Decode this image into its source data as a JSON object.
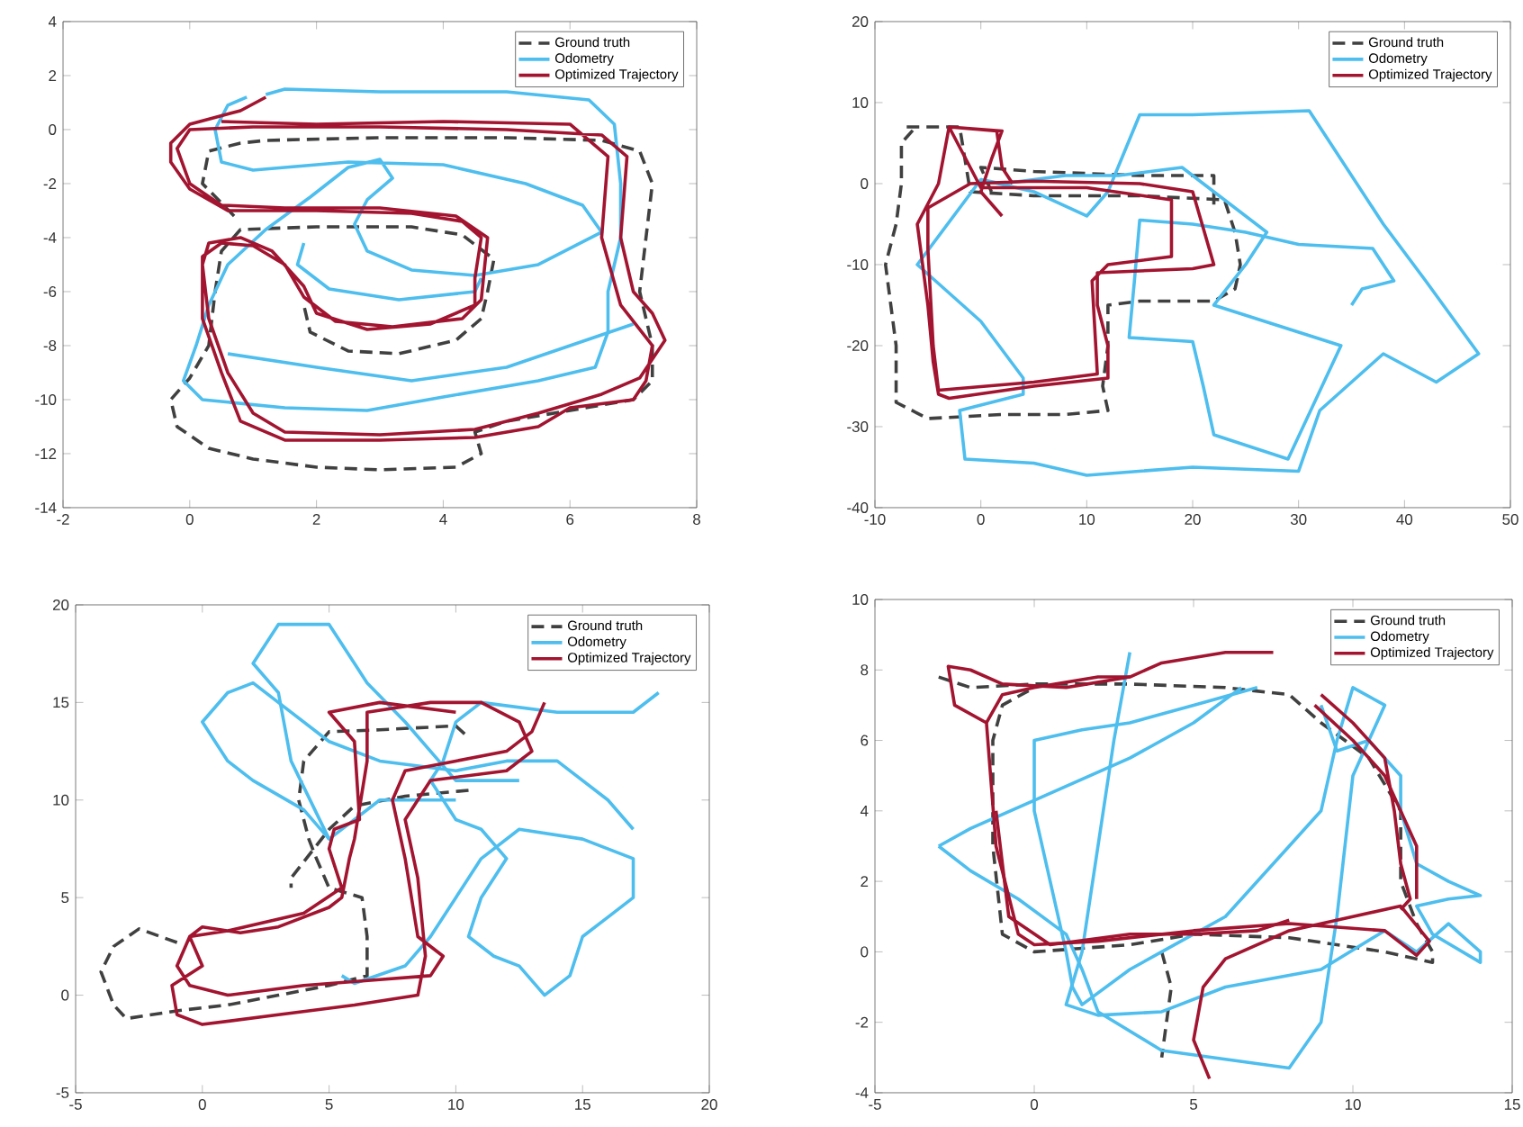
{
  "chart_data": [
    {
      "type": "line",
      "xlim": [
        -2,
        8
      ],
      "ylim": [
        -14,
        4
      ],
      "xticks": [
        -2,
        0,
        2,
        4,
        6,
        8
      ],
      "yticks": [
        -14,
        -12,
        -10,
        -8,
        -6,
        -4,
        -2,
        0,
        2,
        4
      ],
      "legend": "top right",
      "series": [
        {
          "name": "Ground truth",
          "color": "#404040",
          "line_style": "dashed",
          "x": [
            0.7,
            0.2,
            0.3,
            0.8,
            1.2,
            3,
            5,
            6.5,
            7.1,
            7.3,
            7.2,
            7.1,
            7.3,
            7.3,
            7.0,
            6,
            5,
            4.5,
            4.6,
            4.2,
            3,
            2,
            1,
            0.3,
            -0.2,
            -0.3,
            0,
            0.3,
            0.4,
            0.5,
            0.8,
            2,
            3.5,
            4.3,
            4.8,
            4.7,
            4.6,
            4.2,
            3.3,
            2.5,
            1.9,
            1.8
          ],
          "values": [
            -3.2,
            -2,
            -0.8,
            -0.5,
            -0.4,
            -0.3,
            -0.3,
            -0.4,
            -0.8,
            -2,
            -4,
            -6,
            -8,
            -9.3,
            -10,
            -10.4,
            -10.8,
            -11.2,
            -12,
            -12.5,
            -12.6,
            -12.5,
            -12.2,
            -11.8,
            -11,
            -10,
            -9.2,
            -8,
            -6,
            -4.5,
            -3.7,
            -3.6,
            -3.6,
            -3.9,
            -4.8,
            -6,
            -7,
            -7.8,
            -8.3,
            -8.2,
            -7.5,
            -6.5
          ]
        },
        {
          "name": "Odometry",
          "color": "#4dbeee",
          "line_style": "solid",
          "x": [
            1.2,
            1.5,
            3,
            5,
            6.3,
            6.7,
            6.8,
            6.8,
            6.6,
            6.6,
            6.4,
            5.5,
            4,
            2.8,
            1.5,
            0.2,
            -0.1,
            0.1,
            0.3,
            0.6,
            1.2,
            1.9,
            2.5,
            3,
            3.2,
            2.8,
            2.6,
            2.8,
            3.5,
            4.5,
            5.5,
            6.5,
            6.2,
            5.3,
            4,
            2.5,
            1,
            0.5,
            0.4,
            0.6,
            0.9
          ],
          "values": [
            1.3,
            1.5,
            1.4,
            1.4,
            1.1,
            0.2,
            -2,
            -4,
            -6,
            -7.5,
            -8.8,
            -9.3,
            -9.9,
            -10.4,
            -10.3,
            -10,
            -9.3,
            -8,
            -6.5,
            -5,
            -3.7,
            -2.5,
            -1.4,
            -1.1,
            -1.8,
            -2.6,
            -3.5,
            -4.5,
            -5.2,
            -5.4,
            -5,
            -3.8,
            -2.8,
            -2,
            -1.3,
            -1.2,
            -1.5,
            -1.2,
            0,
            0.9,
            1.2
          ]
        },
        {
          "color": "#4dbeee",
          "line_style": "solid",
          "x": [
            1.8,
            1.7,
            2.2,
            3.3,
            4.5,
            4.6
          ],
          "values": [
            -4.2,
            -5,
            -5.9,
            -6.3,
            -6,
            -5.5
          ]
        },
        {
          "color": "#4dbeee",
          "line_style": "solid",
          "x": [
            0.6,
            2,
            3.5,
            5,
            6,
            7
          ],
          "values": [
            -8.3,
            -8.8,
            -9.3,
            -8.8,
            -8,
            -7.2
          ]
        },
        {
          "name": "Optimized Trajectory",
          "color": "#a2142f",
          "line_style": "solid",
          "x": [
            1.2,
            0.8,
            0,
            -0.3,
            -0.3,
            0,
            0.6,
            2,
            3.5,
            4.3,
            4.6,
            4.5,
            4.5,
            3.8,
            2.8,
            2,
            1.8,
            1.3,
            0.8,
            0.3,
            0.2,
            0.3,
            0.6,
            1,
            1.5,
            3,
            4.5,
            5.5,
            6.5,
            7.1,
            7.5,
            7.3,
            7.0,
            6.8,
            6.9,
            6.5,
            5,
            3,
            1,
            0,
            -0.2,
            0,
            0.5,
            1.5,
            3,
            4.2,
            4.7,
            4.6,
            4.3,
            3.2,
            2.3,
            1.8,
            1.5,
            1,
            0.5,
            0.2,
            0.2,
            0.5,
            0.8,
            1.5,
            3,
            4.5,
            5.5,
            6,
            7,
            7.2,
            7.3,
            6.8,
            6.5,
            6.6,
            6,
            4,
            2,
            0.5
          ],
          "values": [
            1.2,
            0.7,
            0.2,
            -0.5,
            -1.2,
            -2.2,
            -3,
            -3,
            -3.1,
            -3.4,
            -4,
            -5.5,
            -6.5,
            -7.2,
            -7.4,
            -6.8,
            -5.8,
            -4.5,
            -4,
            -4.2,
            -5,
            -7,
            -9,
            -10.5,
            -11.2,
            -11.3,
            -11.1,
            -10.5,
            -9.8,
            -9.2,
            -7.8,
            -6.8,
            -6,
            -4,
            -1,
            -0.2,
            0,
            0.1,
            0.1,
            0,
            -0.7,
            -2,
            -2.8,
            -2.9,
            -2.9,
            -3.2,
            -4,
            -6.3,
            -7,
            -7.3,
            -7.1,
            -6.2,
            -5,
            -4.3,
            -4.2,
            -4.7,
            -7,
            -9,
            -10.8,
            -11.5,
            -11.5,
            -11.4,
            -11,
            -10.3,
            -10,
            -9.3,
            -8,
            -6.5,
            -4,
            -1,
            0.2,
            0.3,
            0.2,
            0.3
          ]
        }
      ]
    },
    {
      "type": "line",
      "xlim": [
        -10,
        50
      ],
      "ylim": [
        -40,
        20
      ],
      "xticks": [
        -10,
        0,
        10,
        20,
        30,
        40,
        50
      ],
      "yticks": [
        -40,
        -30,
        -20,
        -10,
        0,
        10,
        20
      ],
      "legend": "top right",
      "series": [
        {
          "name": "Ground truth",
          "color": "#404040",
          "line_style": "dashed",
          "x": [
            -7,
            -2,
            -1.5,
            -1,
            5,
            15,
            23,
            24,
            24.5,
            24,
            22,
            15,
            12,
            12,
            11.5,
            12,
            8,
            2,
            -5,
            -8,
            -8,
            -9,
            -8,
            -7.5,
            -7.5,
            -6
          ],
          "values": [
            7,
            7,
            3,
            -1,
            -1.5,
            -1.5,
            -2,
            -6,
            -10,
            -13,
            -14.5,
            -14.5,
            -15,
            -20,
            -25,
            -28,
            -28.5,
            -28.5,
            -29,
            -27,
            -20,
            -10,
            -5,
            0,
            5,
            7.2
          ]
        },
        {
          "color": "#404040",
          "line_style": "dashed",
          "x": [
            1,
            0,
            5,
            15,
            22,
            22
          ],
          "values": [
            -1,
            2,
            1.5,
            1,
            1,
            -3
          ]
        },
        {
          "name": "Odometry",
          "color": "#4dbeee",
          "line_style": "solid",
          "x": [
            35,
            36,
            39,
            37,
            30,
            25,
            20,
            15,
            14.5,
            14,
            20,
            21,
            22,
            29,
            34,
            22,
            25,
            27,
            22,
            19,
            13,
            8,
            2,
            0,
            -6,
            0,
            4,
            4,
            -2,
            -1.5,
            5,
            10,
            20,
            30,
            32,
            38,
            43,
            47,
            42,
            38,
            33,
            31,
            20,
            15,
            12,
            10,
            5,
            0
          ],
          "values": [
            -15,
            -13,
            -12,
            -8,
            -7.5,
            -6,
            -5,
            -4.5,
            -12,
            -19,
            -19.5,
            -25,
            -31,
            -34,
            -20,
            -15,
            -10,
            -6,
            -1,
            2,
            1,
            1,
            0,
            0.5,
            -10,
            -17,
            -24,
            -26,
            -28,
            -34,
            -34.5,
            -36,
            -35,
            -35.5,
            -28,
            -21,
            -24.5,
            -21,
            -12,
            -5,
            5,
            9,
            8.5,
            8.5,
            -1,
            -4,
            -1,
            0.5
          ]
        },
        {
          "name": "Optimized Trajectory",
          "color": "#a2142f",
          "line_style": "solid",
          "x": [
            2,
            0,
            1,
            2,
            -3,
            -4,
            -6,
            -5,
            -4.5,
            -4,
            -3,
            5,
            12,
            12,
            11,
            11,
            20,
            22,
            20,
            15,
            5,
            -1,
            -5,
            -5,
            -4.5,
            -4,
            5,
            11,
            10.5,
            12,
            18,
            18,
            10,
            0,
            -3,
            1.5,
            2,
            3
          ],
          "values": [
            -4,
            -1,
            3,
            6.5,
            7,
            0,
            -5,
            -15,
            -22,
            -26,
            -26.5,
            -25,
            -24,
            -20,
            -15,
            -11,
            -10.5,
            -10,
            -1,
            0,
            0.3,
            0,
            -3,
            -8,
            -20,
            -25.5,
            -24.5,
            -23.5,
            -12,
            -10,
            -9,
            -2,
            -0.5,
            -0.5,
            7,
            6.5,
            2,
            0
          ]
        }
      ]
    },
    {
      "type": "line",
      "xlim": [
        -5,
        20
      ],
      "ylim": [
        -5,
        20
      ],
      "xticks": [
        -5,
        0,
        5,
        10,
        15,
        20
      ],
      "yticks": [
        -5,
        0,
        5,
        10,
        15,
        20
      ],
      "legend": "top right",
      "series": [
        {
          "name": "Ground truth",
          "color": "#404040",
          "line_style": "dashed",
          "x": [
            -1,
            -2.5,
            -3.5,
            -4,
            -3.5,
            -3,
            -1,
            1,
            3,
            5,
            6.5,
            6.5,
            6.3,
            5,
            4.5,
            4.2,
            3.8,
            4,
            5,
            7,
            10,
            10.5
          ],
          "values": [
            2.7,
            3.4,
            2.5,
            1.2,
            -0.5,
            -1.2,
            -0.8,
            -0.5,
            0,
            0.5,
            1,
            3,
            5,
            5.5,
            7,
            8,
            10,
            12,
            13.5,
            13.6,
            13.8,
            13.2
          ]
        },
        {
          "color": "#404040",
          "line_style": "dashed",
          "x": [
            10.5,
            8,
            6,
            5,
            3.5,
            3.5
          ],
          "values": [
            10.5,
            10.2,
            9.7,
            8.5,
            6,
            5.5
          ]
        },
        {
          "name": "Odometry",
          "color": "#4dbeee",
          "line_style": "solid",
          "x": [
            5.5,
            6,
            8,
            9,
            10,
            11,
            12.5,
            15,
            17,
            17,
            16,
            15,
            14.5,
            13.5,
            12.5,
            11.5,
            10.5,
            11,
            12,
            11,
            10,
            9,
            9.5,
            10,
            11,
            14,
            17,
            18
          ],
          "values": [
            1,
            0.6,
            1.5,
            3,
            5,
            7,
            8.5,
            8,
            7,
            5,
            4,
            3,
            1,
            0,
            1.5,
            2,
            3,
            5,
            7,
            8.5,
            9,
            11,
            12,
            14,
            15,
            14.5,
            14.5,
            15.5
          ]
        },
        {
          "color": "#4dbeee",
          "line_style": "solid",
          "x": [
            10,
            7,
            5,
            4,
            2,
            1,
            0,
            1,
            2,
            3,
            5,
            7,
            10,
            12,
            14,
            16,
            17
          ],
          "values": [
            10,
            10,
            8,
            9.5,
            11,
            12,
            14,
            15.5,
            16,
            15,
            13,
            12,
            11.5,
            12,
            12,
            10,
            8.5
          ]
        },
        {
          "color": "#4dbeee",
          "line_style": "solid",
          "x": [
            5,
            3.5,
            3,
            2,
            3,
            5,
            6,
            6.5,
            8,
            10,
            12.5
          ],
          "values": [
            8,
            12,
            15.5,
            17,
            19,
            19,
            17,
            16,
            14,
            11,
            11
          ]
        },
        {
          "name": "Optimized Trajectory",
          "color": "#a2142f",
          "line_style": "solid",
          "x": [
            13.5,
            13,
            12,
            10,
            8,
            7.5,
            8,
            8.5,
            9.5,
            9,
            7,
            4,
            1,
            -0.5,
            -1,
            -0.5,
            0,
            1.5,
            3,
            5,
            5.5,
            5.8,
            6,
            6.5,
            6.5,
            9,
            11,
            12.5,
            13,
            12,
            9,
            8,
            8.5,
            8.8,
            8.5,
            6,
            3,
            0,
            -1,
            -1.2,
            0,
            -0.5,
            1,
            4,
            5.5,
            5,
            5.2,
            6.2,
            6,
            5,
            7,
            10
          ],
          "values": [
            15,
            13.5,
            12.5,
            12,
            11.5,
            10,
            7,
            3,
            2,
            1,
            0.8,
            0.5,
            0,
            0.5,
            1.5,
            3,
            3.5,
            3.2,
            3.5,
            4.5,
            5,
            7,
            8,
            12,
            14.5,
            15,
            15,
            14,
            12.5,
            11.5,
            11,
            9,
            6,
            2,
            0,
            -0.5,
            -1,
            -1.5,
            -1,
            0.5,
            1.5,
            3,
            3.3,
            4.2,
            5.5,
            7.5,
            8.5,
            9,
            13,
            14.5,
            15,
            14.5
          ]
        }
      ]
    },
    {
      "type": "line",
      "xlim": [
        -5,
        15
      ],
      "ylim": [
        -4,
        10
      ],
      "xticks": [
        -5,
        0,
        5,
        10,
        15
      ],
      "yticks": [
        -4,
        -2,
        0,
        2,
        4,
        6,
        8,
        10
      ],
      "legend": "top right",
      "series": [
        {
          "name": "Ground truth",
          "color": "#404040",
          "line_style": "dashed",
          "x": [
            -3,
            -2,
            0,
            3,
            6,
            8,
            9,
            10.5,
            11.5,
            11.5,
            12,
            12.5,
            12.5,
            11,
            8,
            5,
            3,
            0,
            -1,
            -1.3,
            -1.3,
            -1,
            0
          ],
          "values": [
            7.8,
            7.5,
            7.6,
            7.6,
            7.5,
            7.3,
            6.5,
            5.5,
            4,
            2,
            0.8,
            0,
            -0.3,
            0,
            0.4,
            0.5,
            0.2,
            0,
            0.5,
            3,
            6,
            7,
            7.5
          ]
        },
        {
          "color": "#404040",
          "line_style": "dashed",
          "x": [
            4,
            4.3,
            4
          ],
          "values": [
            0,
            -1,
            -3
          ]
        },
        {
          "name": "Odometry",
          "color": "#4dbeee",
          "line_style": "solid",
          "x": [
            -3,
            -2,
            -0.5,
            1,
            1.5,
            2,
            4,
            8,
            9,
            9.5,
            10,
            11,
            10,
            9.5,
            9,
            8,
            6,
            4,
            3,
            1.5,
            1.2,
            1,
            0.5,
            0,
            0,
            1.5,
            3,
            5,
            7
          ],
          "values": [
            3,
            2.3,
            1.5,
            0.5,
            -0.5,
            -1.7,
            -2.8,
            -3.3,
            -2,
            1,
            5,
            7,
            7.5,
            6,
            4,
            3,
            1,
            0,
            -0.5,
            -1.5,
            -1,
            0,
            2,
            4,
            6,
            6.3,
            6.5,
            7,
            7.5
          ]
        },
        {
          "color": "#4dbeee",
          "line_style": "solid",
          "x": [
            -3,
            -2,
            0,
            3,
            5,
            6.5
          ],
          "values": [
            3,
            3.5,
            4.3,
            5.5,
            6.5,
            7.5
          ]
        },
        {
          "color": "#4dbeee",
          "line_style": "solid",
          "x": [
            3,
            2.5,
            2,
            1.5,
            1,
            2,
            4,
            6,
            9,
            11,
            12,
            13,
            14,
            14,
            12.5,
            12,
            13,
            14,
            13,
            12,
            11.5,
            11.5,
            10.5,
            9.5,
            9
          ],
          "values": [
            8.5,
            6,
            3,
            0,
            -1.5,
            -1.8,
            -1.7,
            -1,
            -0.5,
            0.6,
            0,
            0.8,
            0,
            -0.3,
            0.5,
            1.3,
            1.5,
            1.6,
            2,
            2.5,
            4,
            5,
            6,
            5.7,
            7
          ]
        },
        {
          "name": "Optimized Trajectory",
          "color": "#a2142f",
          "line_style": "solid",
          "x": [
            5.5,
            5,
            5.3,
            6,
            8,
            10,
            11.5,
            12.4,
            12,
            11,
            8,
            5,
            2,
            0,
            -0.5,
            -1.2,
            -1.5,
            -2.5,
            -2.7,
            -2,
            -1,
            1,
            3,
            4,
            6,
            7.5
          ],
          "values": [
            -3.6,
            -2.5,
            -1,
            -0.2,
            0.6,
            1,
            1.3,
            0.3,
            -0.1,
            0.6,
            0.8,
            0.6,
            0.3,
            0.2,
            0.5,
            3,
            6.5,
            7,
            8.1,
            8,
            7.6,
            7.5,
            7.8,
            8.2,
            8.5,
            8.5
          ]
        },
        {
          "color": "#a2142f",
          "line_style": "solid",
          "x": [
            9,
            10,
            11,
            11.3,
            11.5,
            11.8,
            11.5
          ],
          "values": [
            7.3,
            6.5,
            5.5,
            4,
            2.5,
            1.5,
            1.2
          ]
        },
        {
          "color": "#a2142f",
          "line_style": "solid",
          "x": [
            8.8,
            10,
            11,
            12,
            12
          ],
          "values": [
            7,
            6,
            5,
            3,
            1.5
          ]
        },
        {
          "color": "#a2142f",
          "line_style": "solid",
          "x": [
            -1.5,
            -1,
            0,
            2,
            3
          ],
          "values": [
            6.5,
            7.3,
            7.5,
            7.8,
            7.8
          ]
        },
        {
          "color": "#a2142f",
          "line_style": "solid",
          "x": [
            -1.2,
            -0.8,
            0.5,
            3,
            5,
            7,
            8
          ],
          "values": [
            4,
            1,
            0.2,
            0.5,
            0.5,
            0.6,
            0.9
          ]
        }
      ]
    }
  ]
}
